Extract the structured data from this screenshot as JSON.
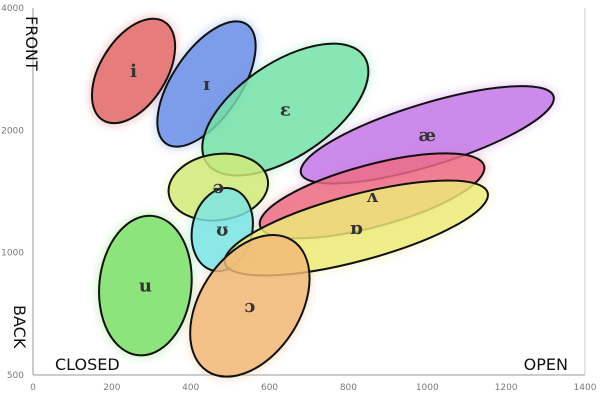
{
  "chart_data": {
    "type": "scatter",
    "title": "",
    "xlabel": "",
    "ylabel": "",
    "x_range": [
      0,
      1400
    ],
    "y_range": [
      500,
      4000
    ],
    "y_scale": "log",
    "x_ticks": [
      0,
      200,
      400,
      600,
      800,
      1000,
      1200,
      1400
    ],
    "y_ticks": [
      500,
      1000,
      2000,
      4000
    ],
    "grid": false,
    "corner_labels": {
      "front": "FRONT",
      "back": "BACK",
      "closed": "CLOSED",
      "open": "OPEN"
    },
    "regions": [
      {
        "symbol": "i",
        "color": "#e36a6a",
        "center": [
          255,
          2800
        ]
      },
      {
        "symbol": "ɪ",
        "color": "#6b8fe6",
        "center": [
          440,
          2600
        ]
      },
      {
        "symbol": "ɛ",
        "color": "#78e2aa",
        "center": [
          640,
          2250
        ]
      },
      {
        "symbol": "æ",
        "color": "#c57ae8",
        "center": [
          1000,
          1950
        ]
      },
      {
        "symbol": "ə",
        "color": "#d3ea7a",
        "center": [
          470,
          1450
        ]
      },
      {
        "symbol": "ʌ",
        "color": "#ee6e86",
        "center": [
          860,
          1380
        ]
      },
      {
        "symbol": "ʊ",
        "color": "#7ce4e4",
        "center": [
          480,
          1140
        ]
      },
      {
        "symbol": "ɒ",
        "color": "#eeeb7a",
        "center": [
          820,
          1150
        ]
      },
      {
        "symbol": "u",
        "color": "#7fe06a",
        "center": [
          285,
          830
        ]
      },
      {
        "symbol": "ɔ",
        "color": "#f2b878",
        "center": [
          550,
          740
        ]
      }
    ]
  }
}
